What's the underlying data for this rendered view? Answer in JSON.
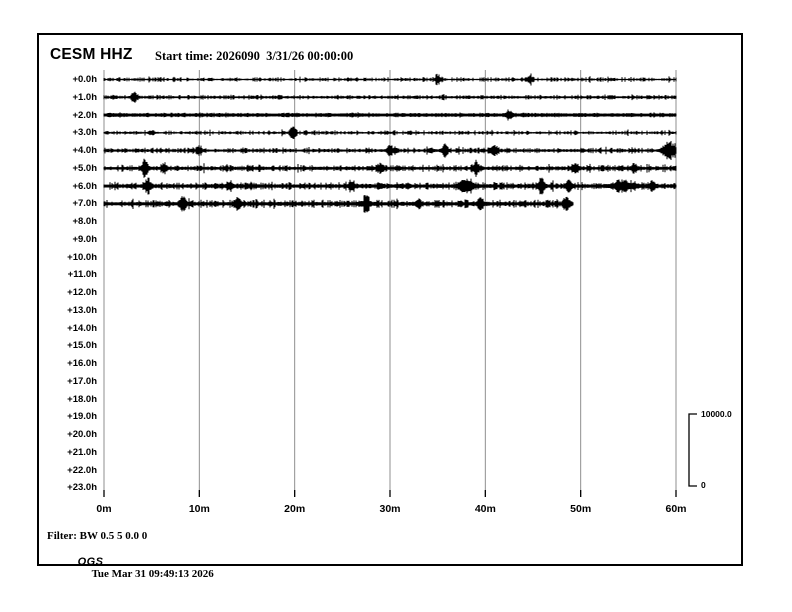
{
  "header": {
    "station": "CESM HHZ",
    "start_time": "Start time: 2026090  3/31/26 00:00:00"
  },
  "scale_bar": {
    "max_label": "10000.0",
    "min_label": "0"
  },
  "footer": {
    "filter_line": "Filter: BW 0.5 5 0.0 0",
    "agency": "OGS",
    "generated": "Tue Mar 31 09:49:13 2026"
  },
  "colors": {
    "trace": "#000000",
    "gridline": "#8f8f8f",
    "tick": "#000000"
  },
  "chart_data": {
    "type": "line",
    "subtype": "helicorder",
    "title": "CESM HHZ",
    "station": "CESM",
    "channel": "HHZ",
    "start_time": "2026090 3/31/26 00:00:00",
    "x_ticks": [
      "0m",
      "10m",
      "20m",
      "30m",
      "40m",
      "50m",
      "60m"
    ],
    "x_tick_minutes": [
      0,
      10,
      20,
      30,
      40,
      50,
      60
    ],
    "x_range_minutes": [
      0,
      60
    ],
    "minutes_per_row": 60,
    "grid": true,
    "row_labels": [
      "+0.0h",
      "+1.0h",
      "+2.0h",
      "+3.0h",
      "+4.0h",
      "+5.0h",
      "+6.0h",
      "+7.0h",
      "+8.0h",
      "+9.0h",
      "+10.0h",
      "+11.0h",
      "+12.0h",
      "+13.0h",
      "+14.0h",
      "+15.0h",
      "+16.0h",
      "+17.0h",
      "+18.0h",
      "+19.0h",
      "+20.0h",
      "+21.0h",
      "+22.0h",
      "+23.0h"
    ],
    "amplitude_scale": {
      "min": 0,
      "max": 10000.0
    },
    "rows_with_data": [
      0,
      1,
      2,
      3,
      4,
      5,
      6,
      7
    ],
    "traces": [
      {
        "row": 0,
        "label": "+0.0h",
        "end_min": 60,
        "base": 1.2,
        "noise": 0.8,
        "spikes": [
          {
            "m": 35.0,
            "amp": 4.0
          },
          {
            "m": 44.7,
            "amp": 3.5
          }
        ]
      },
      {
        "row": 1,
        "label": "+1.0h",
        "end_min": 60,
        "base": 1.7,
        "noise": 0.7,
        "spikes": [
          {
            "m": 3.2,
            "amp": 4.0
          }
        ]
      },
      {
        "row": 2,
        "label": "+2.0h",
        "end_min": 60,
        "base": 2.8,
        "noise": 0.4,
        "spikes": [
          {
            "m": 42.5,
            "amp": 3.5
          }
        ]
      },
      {
        "row": 3,
        "label": "+3.0h",
        "end_min": 60,
        "base": 1.3,
        "noise": 0.8,
        "spikes": [
          {
            "m": 5.0,
            "amp": 2.0
          },
          {
            "m": 19.8,
            "amp": 4.5
          }
        ]
      },
      {
        "row": 4,
        "label": "+4.0h",
        "end_min": 60,
        "base": 1.9,
        "noise": 0.9,
        "spikes": [
          {
            "m": 10.0,
            "amp": 3.0
          },
          {
            "m": 30.0,
            "amp": 4.0
          },
          {
            "m": 35.8,
            "amp": 5.0
          },
          {
            "m": 41.0,
            "amp": 4.5
          },
          {
            "m": 59.3,
            "amp": 7.5,
            "w": 0.45
          }
        ]
      },
      {
        "row": 5,
        "label": "+5.0h",
        "end_min": 60,
        "base": 2.3,
        "noise": 1.0,
        "spikes": [
          {
            "m": 4.3,
            "amp": 6.5
          },
          {
            "m": 6.3,
            "amp": 4.0
          },
          {
            "m": 29.0,
            "amp": 4.0
          },
          {
            "m": 39.0,
            "amp": 4.5
          },
          {
            "m": 49.4,
            "amp": 5.0
          },
          {
            "m": 55.6,
            "amp": 4.0
          }
        ]
      },
      {
        "row": 6,
        "label": "+6.0h",
        "end_min": 60,
        "base": 2.9,
        "noise": 1.1,
        "spikes": [
          {
            "m": 4.6,
            "amp": 7.0
          },
          {
            "m": 13.2,
            "amp": 3.0
          },
          {
            "m": 26.0,
            "amp": 3.0
          },
          {
            "m": 38.0,
            "amp": 5.0,
            "w": 0.5
          },
          {
            "m": 45.9,
            "amp": 6.5
          },
          {
            "m": 48.8,
            "amp": 4.5
          },
          {
            "m": 54.5,
            "amp": 3.5,
            "w": 0.8
          },
          {
            "m": 57.5,
            "amp": 3.5
          }
        ]
      },
      {
        "row": 7,
        "label": "+7.0h",
        "end_min": 49.2,
        "base": 2.9,
        "noise": 1.2,
        "spikes": [
          {
            "m": 8.3,
            "amp": 6.0
          },
          {
            "m": 14.0,
            "amp": 3.5
          },
          {
            "m": 27.5,
            "amp": 7.0
          },
          {
            "m": 33.0,
            "amp": 3.0
          },
          {
            "m": 39.5,
            "amp": 4.5
          },
          {
            "m": 48.5,
            "amp": 4.0
          }
        ]
      }
    ]
  }
}
